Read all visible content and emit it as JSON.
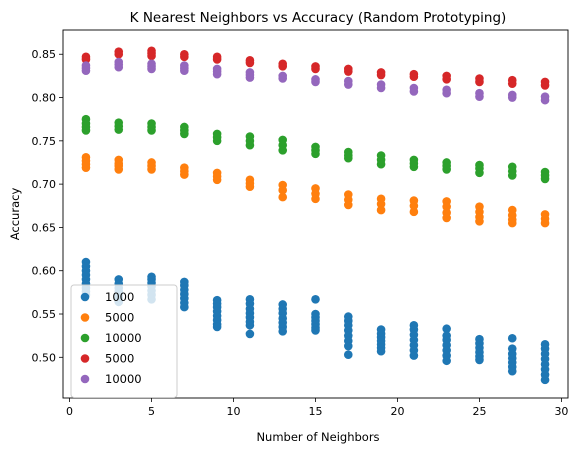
{
  "chart_data": {
    "type": "scatter",
    "title": "K Nearest Neighbors vs Accuracy (Random Prototyping)",
    "xlabel": "Number of Neighbors",
    "ylabel": "Accuracy",
    "xlim": [
      -0.4,
      30.4
    ],
    "ylim": [
      0.453,
      0.878
    ],
    "xticks": [
      0,
      5,
      10,
      15,
      20,
      25,
      30
    ],
    "yticks": [
      0.5,
      0.55,
      0.6,
      0.65,
      0.7,
      0.75,
      0.8,
      0.85
    ],
    "ytick_labels": [
      "0.50",
      "0.55",
      "0.60",
      "0.65",
      "0.70",
      "0.75",
      "0.80",
      "0.85"
    ],
    "grid": false,
    "legend": "lower-left",
    "series": [
      {
        "name": "1000",
        "color": "#1f77b4",
        "points": [
          [
            1,
            0.61
          ],
          [
            1,
            0.605
          ],
          [
            1,
            0.6
          ],
          [
            1,
            0.595
          ],
          [
            1,
            0.59
          ],
          [
            1,
            0.585
          ],
          [
            1,
            0.58
          ],
          [
            1,
            0.576
          ],
          [
            1,
            0.572
          ],
          [
            3,
            0.59
          ],
          [
            3,
            0.585
          ],
          [
            3,
            0.58
          ],
          [
            3,
            0.576
          ],
          [
            3,
            0.572
          ],
          [
            3,
            0.568
          ],
          [
            3,
            0.564
          ],
          [
            5,
            0.593
          ],
          [
            5,
            0.59
          ],
          [
            5,
            0.586
          ],
          [
            5,
            0.582
          ],
          [
            5,
            0.577
          ],
          [
            5,
            0.572
          ],
          [
            5,
            0.567
          ],
          [
            7,
            0.587
          ],
          [
            7,
            0.583
          ],
          [
            7,
            0.578
          ],
          [
            7,
            0.573
          ],
          [
            7,
            0.568
          ],
          [
            7,
            0.563
          ],
          [
            7,
            0.558
          ],
          [
            9,
            0.566
          ],
          [
            9,
            0.562
          ],
          [
            9,
            0.558
          ],
          [
            9,
            0.553
          ],
          [
            9,
            0.548
          ],
          [
            9,
            0.543
          ],
          [
            9,
            0.538
          ],
          [
            9,
            0.535
          ],
          [
            11,
            0.567
          ],
          [
            11,
            0.562
          ],
          [
            11,
            0.556
          ],
          [
            11,
            0.551
          ],
          [
            11,
            0.546
          ],
          [
            11,
            0.541
          ],
          [
            11,
            0.537
          ],
          [
            11,
            0.527
          ],
          [
            13,
            0.561
          ],
          [
            13,
            0.556
          ],
          [
            13,
            0.551
          ],
          [
            13,
            0.545
          ],
          [
            13,
            0.54
          ],
          [
            13,
            0.535
          ],
          [
            13,
            0.53
          ],
          [
            15,
            0.567
          ],
          [
            15,
            0.55
          ],
          [
            15,
            0.546
          ],
          [
            15,
            0.542
          ],
          [
            15,
            0.538
          ],
          [
            15,
            0.534
          ],
          [
            15,
            0.531
          ],
          [
            17,
            0.547
          ],
          [
            17,
            0.542
          ],
          [
            17,
            0.537
          ],
          [
            17,
            0.531
          ],
          [
            17,
            0.525
          ],
          [
            17,
            0.519
          ],
          [
            17,
            0.513
          ],
          [
            17,
            0.503
          ],
          [
            19,
            0.532
          ],
          [
            19,
            0.527
          ],
          [
            19,
            0.523
          ],
          [
            19,
            0.519
          ],
          [
            19,
            0.515
          ],
          [
            19,
            0.511
          ],
          [
            19,
            0.507
          ],
          [
            21,
            0.537
          ],
          [
            21,
            0.532
          ],
          [
            21,
            0.526
          ],
          [
            21,
            0.52
          ],
          [
            21,
            0.514
          ],
          [
            21,
            0.508
          ],
          [
            21,
            0.502
          ],
          [
            23,
            0.533
          ],
          [
            23,
            0.525
          ],
          [
            23,
            0.52
          ],
          [
            23,
            0.514
          ],
          [
            23,
            0.508
          ],
          [
            23,
            0.502
          ],
          [
            23,
            0.496
          ],
          [
            25,
            0.521
          ],
          [
            25,
            0.516
          ],
          [
            25,
            0.511
          ],
          [
            25,
            0.506
          ],
          [
            25,
            0.501
          ],
          [
            25,
            0.497
          ],
          [
            27,
            0.522
          ],
          [
            27,
            0.51
          ],
          [
            27,
            0.504
          ],
          [
            27,
            0.499
          ],
          [
            27,
            0.494
          ],
          [
            27,
            0.489
          ],
          [
            27,
            0.484
          ],
          [
            29,
            0.515
          ],
          [
            29,
            0.51
          ],
          [
            29,
            0.504
          ],
          [
            29,
            0.498
          ],
          [
            29,
            0.492
          ],
          [
            29,
            0.486
          ],
          [
            29,
            0.48
          ],
          [
            29,
            0.474
          ]
        ]
      },
      {
        "name": "5000",
        "color": "#ff7f0e",
        "points": [
          [
            1,
            0.731
          ],
          [
            1,
            0.727
          ],
          [
            1,
            0.723
          ],
          [
            1,
            0.719
          ],
          [
            3,
            0.728
          ],
          [
            3,
            0.724
          ],
          [
            3,
            0.721
          ],
          [
            3,
            0.717
          ],
          [
            5,
            0.725
          ],
          [
            5,
            0.721
          ],
          [
            5,
            0.717
          ],
          [
            7,
            0.719
          ],
          [
            7,
            0.715
          ],
          [
            7,
            0.711
          ],
          [
            9,
            0.713
          ],
          [
            9,
            0.709
          ],
          [
            9,
            0.705
          ],
          [
            11,
            0.705
          ],
          [
            11,
            0.701
          ],
          [
            11,
            0.697
          ],
          [
            13,
            0.699
          ],
          [
            13,
            0.693
          ],
          [
            13,
            0.685
          ],
          [
            15,
            0.695
          ],
          [
            15,
            0.689
          ],
          [
            15,
            0.683
          ],
          [
            17,
            0.688
          ],
          [
            17,
            0.682
          ],
          [
            17,
            0.676
          ],
          [
            19,
            0.683
          ],
          [
            19,
            0.677
          ],
          [
            19,
            0.67
          ],
          [
            21,
            0.681
          ],
          [
            21,
            0.675
          ],
          [
            21,
            0.668
          ],
          [
            23,
            0.68
          ],
          [
            23,
            0.674
          ],
          [
            23,
            0.667
          ],
          [
            23,
            0.661
          ],
          [
            25,
            0.674
          ],
          [
            25,
            0.668
          ],
          [
            25,
            0.662
          ],
          [
            25,
            0.657
          ],
          [
            27,
            0.67
          ],
          [
            27,
            0.664
          ],
          [
            27,
            0.659
          ],
          [
            27,
            0.655
          ],
          [
            29,
            0.665
          ],
          [
            29,
            0.66
          ],
          [
            29,
            0.655
          ]
        ]
      },
      {
        "name": "10000",
        "color": "#2ca02c",
        "points": [
          [
            1,
            0.775
          ],
          [
            1,
            0.77
          ],
          [
            1,
            0.766
          ],
          [
            1,
            0.762
          ],
          [
            3,
            0.771
          ],
          [
            3,
            0.767
          ],
          [
            3,
            0.763
          ],
          [
            5,
            0.77
          ],
          [
            5,
            0.766
          ],
          [
            5,
            0.762
          ],
          [
            7,
            0.766
          ],
          [
            7,
            0.762
          ],
          [
            7,
            0.758
          ],
          [
            9,
            0.758
          ],
          [
            9,
            0.754
          ],
          [
            9,
            0.75
          ],
          [
            11,
            0.755
          ],
          [
            11,
            0.75
          ],
          [
            11,
            0.745
          ],
          [
            13,
            0.751
          ],
          [
            13,
            0.745
          ],
          [
            13,
            0.739
          ],
          [
            15,
            0.743
          ],
          [
            15,
            0.739
          ],
          [
            15,
            0.735
          ],
          [
            17,
            0.737
          ],
          [
            17,
            0.733
          ],
          [
            17,
            0.73
          ],
          [
            19,
            0.733
          ],
          [
            19,
            0.728
          ],
          [
            19,
            0.723
          ],
          [
            21,
            0.728
          ],
          [
            21,
            0.724
          ],
          [
            21,
            0.72
          ],
          [
            23,
            0.725
          ],
          [
            23,
            0.721
          ],
          [
            23,
            0.717
          ],
          [
            25,
            0.722
          ],
          [
            25,
            0.718
          ],
          [
            25,
            0.713
          ],
          [
            27,
            0.72
          ],
          [
            27,
            0.715
          ],
          [
            27,
            0.71
          ],
          [
            29,
            0.714
          ],
          [
            29,
            0.71
          ],
          [
            29,
            0.706
          ]
        ]
      },
      {
        "name": "5000",
        "color": "#d62728",
        "points": [
          [
            1,
            0.847
          ],
          [
            1,
            0.844
          ],
          [
            3,
            0.853
          ],
          [
            3,
            0.85
          ],
          [
            5,
            0.854
          ],
          [
            5,
            0.851
          ],
          [
            5,
            0.848
          ],
          [
            7,
            0.85
          ],
          [
            7,
            0.847
          ],
          [
            9,
            0.847
          ],
          [
            9,
            0.844
          ],
          [
            11,
            0.843
          ],
          [
            11,
            0.84
          ],
          [
            13,
            0.839
          ],
          [
            13,
            0.836
          ],
          [
            15,
            0.836
          ],
          [
            15,
            0.833
          ],
          [
            17,
            0.833
          ],
          [
            17,
            0.83
          ],
          [
            19,
            0.829
          ],
          [
            19,
            0.826
          ],
          [
            21,
            0.827
          ],
          [
            21,
            0.824
          ],
          [
            23,
            0.825
          ],
          [
            23,
            0.821
          ],
          [
            25,
            0.822
          ],
          [
            25,
            0.818
          ],
          [
            27,
            0.82
          ],
          [
            27,
            0.816
          ],
          [
            29,
            0.818
          ],
          [
            29,
            0.814
          ]
        ]
      },
      {
        "name": "10000",
        "color": "#9467bd",
        "points": [
          [
            1,
            0.837
          ],
          [
            1,
            0.834
          ],
          [
            1,
            0.831
          ],
          [
            3,
            0.841
          ],
          [
            3,
            0.838
          ],
          [
            3,
            0.835
          ],
          [
            5,
            0.839
          ],
          [
            5,
            0.836
          ],
          [
            5,
            0.833
          ],
          [
            7,
            0.837
          ],
          [
            7,
            0.834
          ],
          [
            7,
            0.831
          ],
          [
            9,
            0.833
          ],
          [
            9,
            0.83
          ],
          [
            9,
            0.827
          ],
          [
            11,
            0.829
          ],
          [
            11,
            0.826
          ],
          [
            11,
            0.823
          ],
          [
            13,
            0.825
          ],
          [
            13,
            0.822
          ],
          [
            15,
            0.821
          ],
          [
            15,
            0.818
          ],
          [
            17,
            0.819
          ],
          [
            17,
            0.815
          ],
          [
            19,
            0.815
          ],
          [
            19,
            0.811
          ],
          [
            21,
            0.811
          ],
          [
            21,
            0.807
          ],
          [
            23,
            0.809
          ],
          [
            23,
            0.805
          ],
          [
            25,
            0.805
          ],
          [
            25,
            0.801
          ],
          [
            27,
            0.803
          ],
          [
            27,
            0.8
          ],
          [
            29,
            0.801
          ],
          [
            29,
            0.797
          ]
        ]
      }
    ]
  }
}
